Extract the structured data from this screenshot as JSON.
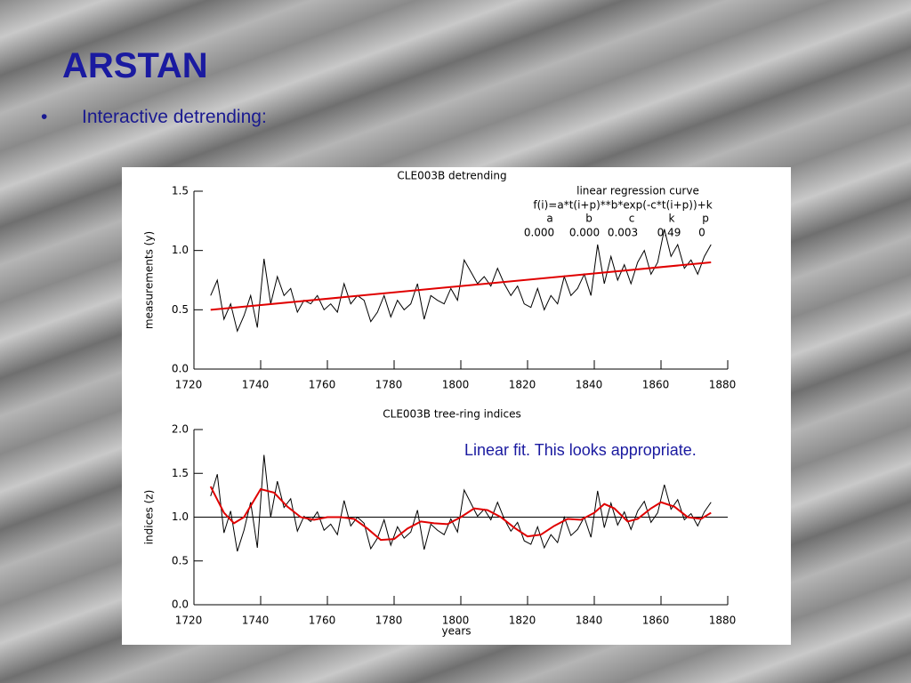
{
  "title": "ARSTAN",
  "bullet": "Interactive detrending:",
  "chart_data": [
    {
      "type": "line",
      "title": "CLE003B detrending",
      "ylabel": "measurements (y)",
      "xlim": [
        1720,
        1880
      ],
      "xticks": [
        1720,
        1740,
        1760,
        1780,
        1800,
        1820,
        1840,
        1860,
        1880
      ],
      "ylim": [
        0,
        1.5
      ],
      "yticks": [
        {
          "value": 0,
          "label": "0.0"
        },
        {
          "value": 0.5,
          "label": "0.5"
        },
        {
          "value": 1,
          "label": "1.0"
        },
        {
          "value": 1.5,
          "label": "1.5"
        }
      ],
      "equation_title": "linear regression curve",
      "equation": "f(i)=a*t(i+p)**b*exp(-c*t(i+p))+k",
      "param_names": [
        "a",
        "b",
        "c",
        "k",
        "p"
      ],
      "param_values": [
        "0.000",
        "0.000",
        "0.003",
        "0.49",
        "0"
      ],
      "series": [
        {
          "color": "#000000",
          "x": [
            1725,
            1727,
            1729,
            1731,
            1733,
            1735,
            1737,
            1739,
            1741,
            1743,
            1745,
            1747,
            1749,
            1751,
            1753,
            1755,
            1757,
            1759,
            1761,
            1763,
            1765,
            1767,
            1769,
            1771,
            1773,
            1775,
            1777,
            1779,
            1781,
            1783,
            1785,
            1787,
            1789,
            1791,
            1793,
            1795,
            1797,
            1799,
            1801,
            1803,
            1805,
            1807,
            1809,
            1811,
            1813,
            1815,
            1817,
            1819,
            1821,
            1823,
            1825,
            1827,
            1829,
            1831,
            1833,
            1835,
            1837,
            1839,
            1841,
            1843,
            1845,
            1847,
            1849,
            1851,
            1853,
            1855,
            1857,
            1859,
            1861,
            1863,
            1865,
            1867,
            1869,
            1871,
            1873,
            1875
          ],
          "values": [
            0.62,
            0.75,
            0.42,
            0.55,
            0.32,
            0.45,
            0.62,
            0.35,
            0.93,
            0.55,
            0.78,
            0.62,
            0.68,
            0.48,
            0.58,
            0.55,
            0.62,
            0.5,
            0.55,
            0.48,
            0.72,
            0.55,
            0.62,
            0.58,
            0.4,
            0.48,
            0.62,
            0.44,
            0.58,
            0.5,
            0.55,
            0.72,
            0.42,
            0.62,
            0.58,
            0.55,
            0.68,
            0.58,
            0.92,
            0.82,
            0.72,
            0.78,
            0.7,
            0.85,
            0.72,
            0.62,
            0.7,
            0.55,
            0.52,
            0.68,
            0.5,
            0.62,
            0.55,
            0.78,
            0.62,
            0.68,
            0.8,
            0.62,
            1.05,
            0.72,
            0.95,
            0.75,
            0.88,
            0.72,
            0.9,
            1.0,
            0.8,
            0.9,
            1.18,
            0.95,
            1.05,
            0.85,
            0.92,
            0.8,
            0.95,
            1.05
          ]
        },
        {
          "color": "#e00000",
          "x": [
            1725,
            1875
          ],
          "values": [
            0.5,
            0.9
          ]
        }
      ]
    },
    {
      "type": "line",
      "title": "CLE003B tree-ring indices",
      "ylabel": "indices (z)",
      "xlabel": "years",
      "xlim": [
        1720,
        1880
      ],
      "xticks": [
        1720,
        1740,
        1760,
        1780,
        1800,
        1820,
        1840,
        1860,
        1880
      ],
      "ylim": [
        0,
        2
      ],
      "yticks": [
        {
          "value": 0,
          "label": "0.0"
        },
        {
          "value": 0.5,
          "label": "0.5"
        },
        {
          "value": 1,
          "label": "1.0"
        },
        {
          "value": 1.5,
          "label": "1.5"
        },
        {
          "value": 2,
          "label": "2.0"
        }
      ],
      "reference_line": 1,
      "annotation": "Linear fit. This looks appropriate.",
      "series": [
        {
          "color": "#000000",
          "x": [
            1725,
            1727,
            1729,
            1731,
            1733,
            1735,
            1737,
            1739,
            1741,
            1743,
            1745,
            1747,
            1749,
            1751,
            1753,
            1755,
            1757,
            1759,
            1761,
            1763,
            1765,
            1767,
            1769,
            1771,
            1773,
            1775,
            1777,
            1779,
            1781,
            1783,
            1785,
            1787,
            1789,
            1791,
            1793,
            1795,
            1797,
            1799,
            1801,
            1803,
            1805,
            1807,
            1809,
            1811,
            1813,
            1815,
            1817,
            1819,
            1821,
            1823,
            1825,
            1827,
            1829,
            1831,
            1833,
            1835,
            1837,
            1839,
            1841,
            1843,
            1845,
            1847,
            1849,
            1851,
            1853,
            1855,
            1857,
            1859,
            1861,
            1863,
            1865,
            1867,
            1869,
            1871,
            1873,
            1875
          ],
          "values": [
            1.24,
            1.49,
            0.82,
            1.07,
            0.61,
            0.85,
            1.17,
            0.65,
            1.71,
            1.0,
            1.41,
            1.11,
            1.21,
            0.84,
            1.01,
            0.95,
            1.06,
            0.85,
            0.92,
            0.8,
            1.19,
            0.9,
            1.0,
            0.93,
            0.64,
            0.76,
            0.97,
            0.68,
            0.89,
            0.76,
            0.83,
            1.08,
            0.63,
            0.92,
            0.85,
            0.8,
            0.98,
            0.83,
            1.31,
            1.16,
            1.01,
            1.09,
            0.97,
            1.17,
            0.98,
            0.84,
            0.94,
            0.73,
            0.69,
            0.89,
            0.65,
            0.8,
            0.71,
            1.0,
            0.79,
            0.86,
            1.0,
            0.77,
            1.3,
            0.88,
            1.16,
            0.91,
            1.06,
            0.86,
            1.07,
            1.18,
            0.94,
            1.05,
            1.37,
            1.09,
            1.2,
            0.97,
            1.04,
            0.9,
            1.06,
            1.17
          ]
        },
        {
          "color": "#e00000",
          "x": [
            1725,
            1729,
            1732,
            1735,
            1740,
            1744,
            1748,
            1752,
            1756,
            1760,
            1764,
            1768,
            1772,
            1776,
            1780,
            1784,
            1788,
            1792,
            1796,
            1800,
            1804,
            1808,
            1812,
            1816,
            1820,
            1824,
            1828,
            1832,
            1836,
            1840,
            1843,
            1846,
            1850,
            1853,
            1857,
            1860,
            1864,
            1868,
            1872,
            1875
          ],
          "values": [
            1.35,
            1.05,
            0.93,
            1.0,
            1.32,
            1.28,
            1.12,
            1.0,
            0.97,
            1.0,
            1.0,
            0.98,
            0.87,
            0.74,
            0.75,
            0.87,
            0.95,
            0.93,
            0.92,
            1.0,
            1.1,
            1.08,
            1.0,
            0.88,
            0.78,
            0.8,
            0.9,
            0.98,
            0.97,
            1.05,
            1.15,
            1.1,
            0.95,
            0.98,
            1.1,
            1.17,
            1.12,
            1.0,
            0.98,
            1.05
          ]
        }
      ]
    }
  ]
}
